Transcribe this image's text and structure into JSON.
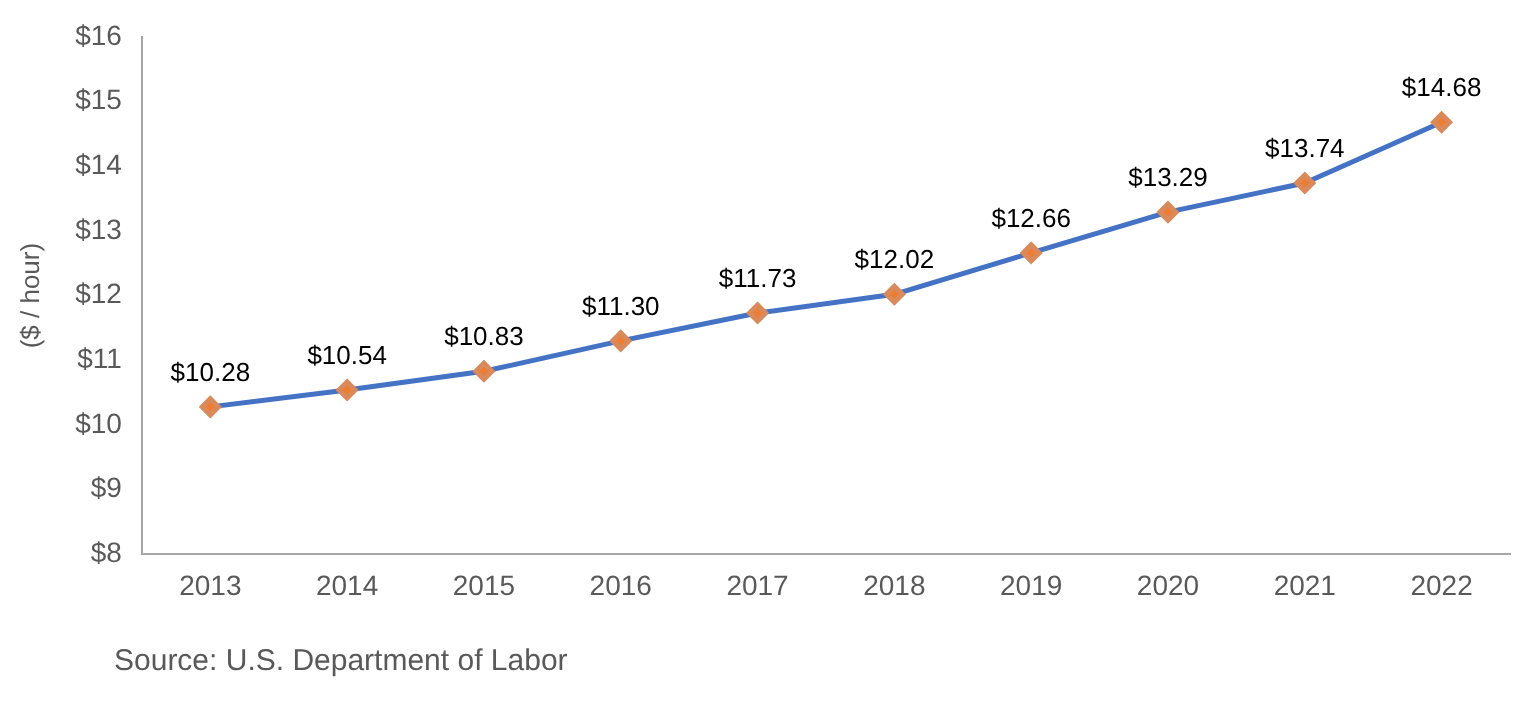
{
  "chart_data": {
    "type": "line",
    "ylabel": "($ / hour)",
    "categories": [
      "2013",
      "2014",
      "2015",
      "2016",
      "2017",
      "2018",
      "2019",
      "2020",
      "2021",
      "2022"
    ],
    "series": [
      {
        "color": "#4472c4",
        "values": [
          10.28,
          10.54,
          10.83,
          11.3,
          11.73,
          12.02,
          12.66,
          13.29,
          13.74,
          14.68
        ],
        "value_labels": [
          "$10.28",
          "$10.54",
          "$10.83",
          "$11.30",
          "$11.73",
          "$12.02",
          "$12.66",
          "$13.29",
          "$13.74",
          "$14.68"
        ]
      }
    ],
    "ylim": [
      8,
      16
    ],
    "yticks": [
      {
        "value": 8,
        "label": "$8"
      },
      {
        "value": 9,
        "label": "$9"
      },
      {
        "value": 10,
        "label": "$10"
      },
      {
        "value": 11,
        "label": "$11"
      },
      {
        "value": 12,
        "label": "$12"
      },
      {
        "value": 13,
        "label": "$13"
      },
      {
        "value": 14,
        "label": "$14"
      },
      {
        "value": 15,
        "label": "$15"
      },
      {
        "value": 16,
        "label": "$16"
      }
    ],
    "marker": "diamond",
    "line_style": "solid",
    "annotations": [
      "Source: U.S. Department of Labor"
    ]
  }
}
